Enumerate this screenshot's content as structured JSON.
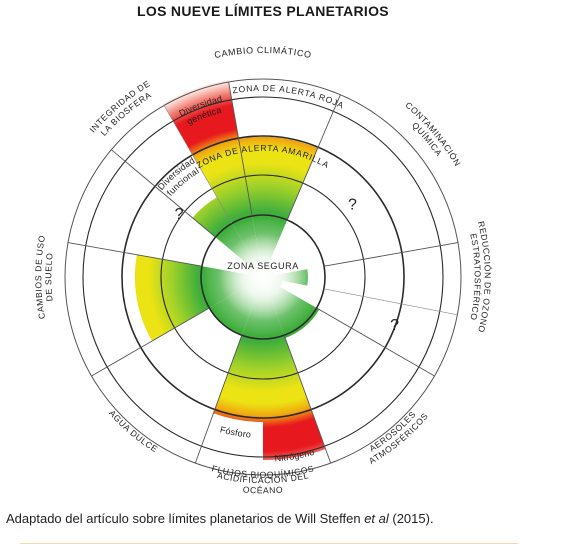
{
  "title": "LOS NUEVE LÍMITES PLANETARIOS",
  "zones": {
    "safe": "ZONA SEGURA",
    "yellow": "ZONA DE ALERTA AMARILLA",
    "red": "ZONA DE ALERTA ROJA"
  },
  "boundaries": {
    "climate": [
      "CAMBIO CLIMÁTICO"
    ],
    "chemical": [
      "CONTAMINACIÓN",
      "QUÍMICA"
    ],
    "ozone": [
      "REDUCCIÓN DE OZONO",
      "ESTRATOSFÉRICO"
    ],
    "aerosols": [
      "AEROSOLES",
      "ATMOSFÉRICOS"
    ],
    "ocean": [
      "ACIDIFICACIÓN DEL",
      "OCÉANO"
    ],
    "biochemical": [
      "FLUJOS BIOQUÍMICOS"
    ],
    "water": [
      "AGUA DULCE"
    ],
    "land": [
      "CAMBIOS DE USO",
      "DE SUELO"
    ],
    "biosphere": [
      "INTEGRIDAD DE",
      "LA BIOSFERA"
    ]
  },
  "sub_labels": {
    "genetic": [
      "Diversidad",
      "genética"
    ],
    "functional": [
      "Diversidad",
      "funcional"
    ],
    "phosphorus": "Fósforo",
    "nitrogen": "Nitrógeno"
  },
  "unknown_mark": "?",
  "caption": {
    "before": "Adaptado del artículo sobre límites planetarios de Will Steffen ",
    "italic": "et al",
    "after": " (2015)."
  },
  "colors": {
    "safe_green": "#3fae3c",
    "yellow": "#ece314",
    "red": "#e8181f",
    "ring_line": "#2b2b2b",
    "rule": "#f2d9a6"
  }
}
